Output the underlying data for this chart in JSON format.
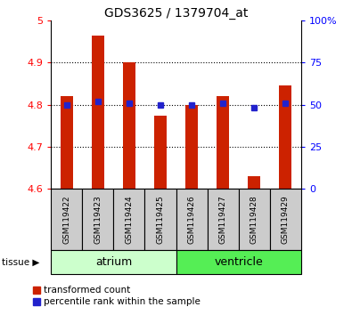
{
  "title": "GDS3625 / 1379704_at",
  "samples": [
    "GSM119422",
    "GSM119423",
    "GSM119424",
    "GSM119425",
    "GSM119426",
    "GSM119427",
    "GSM119428",
    "GSM119429"
  ],
  "transformed_count": [
    4.82,
    4.965,
    4.9,
    4.775,
    4.8,
    4.82,
    4.63,
    4.845
  ],
  "percentile_rank": [
    50,
    52,
    51,
    50,
    50,
    51,
    48,
    51
  ],
  "ylim_left": [
    4.6,
    5.0
  ],
  "ylim_right": [
    0,
    100
  ],
  "yticks_left": [
    4.6,
    4.7,
    4.8,
    4.9,
    5.0
  ],
  "ytick_labels_left": [
    "4.6",
    "4.7",
    "4.8",
    "4.9",
    "5"
  ],
  "yticks_right": [
    0,
    25,
    50,
    75,
    100
  ],
  "ytick_labels_right": [
    "0",
    "25",
    "50",
    "75",
    "100%"
  ],
  "bar_color": "#cc2200",
  "dot_color": "#2222cc",
  "tissue_groups": [
    {
      "label": "atrium",
      "start": 0,
      "end": 3,
      "color": "#ccffcc"
    },
    {
      "label": "ventricle",
      "start": 4,
      "end": 7,
      "color": "#55ee55"
    }
  ],
  "sample_box_color": "#cccccc",
  "legend_items": [
    {
      "label": "transformed count",
      "color": "#cc2200"
    },
    {
      "label": "percentile rank within the sample",
      "color": "#2222cc"
    }
  ],
  "tissue_label": "tissue",
  "title_fontsize": 10,
  "axis_fontsize": 8,
  "sample_fontsize": 6.5,
  "tissue_fontsize": 9,
  "legend_fontsize": 7.5
}
